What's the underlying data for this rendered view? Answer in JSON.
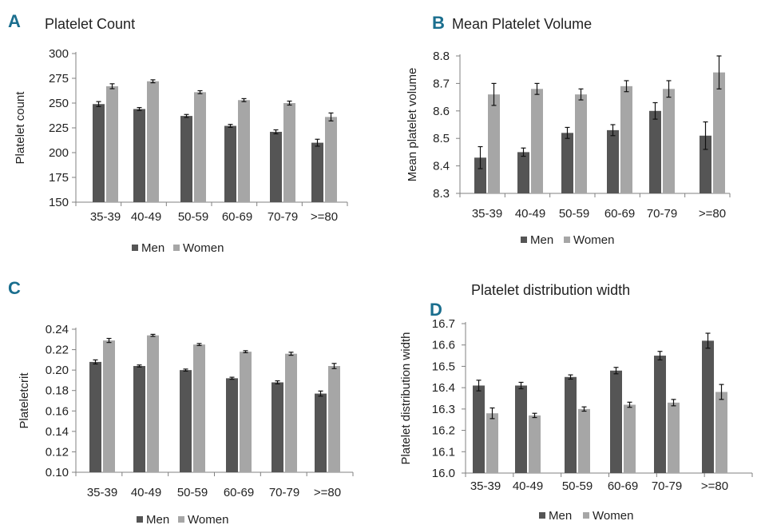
{
  "colors": {
    "men": "#555555",
    "women": "#a6a6a6",
    "accent": "#1a6e8e",
    "axis": "#808080",
    "error": "#111111"
  },
  "chart_data": [
    {
      "panel": "A",
      "type": "bar",
      "title": "Platelet Count",
      "xlabel": "",
      "ylabel": "Platelet count",
      "ylim": [
        150,
        300
      ],
      "yticks": [
        "150",
        "175",
        "200",
        "225",
        "250",
        "275",
        "300"
      ],
      "categories": [
        "35-39",
        "40-49",
        "50-59",
        "60-69",
        "70-79",
        ">=80"
      ],
      "series": [
        {
          "name": "Men",
          "values": [
            249,
            244,
            237,
            227,
            221,
            210
          ],
          "errors": [
            2.5,
            1.5,
            1.5,
            1.5,
            2,
            3.5
          ]
        },
        {
          "name": "Women",
          "values": [
            267,
            272,
            261,
            253,
            250,
            236
          ],
          "errors": [
            2.5,
            1.5,
            1.5,
            1.5,
            2,
            4
          ]
        }
      ],
      "legend": "bottom"
    },
    {
      "panel": "B",
      "type": "bar",
      "title": "Mean Platelet Volume",
      "xlabel": "",
      "ylabel": "Mean platelet volume",
      "ylim": [
        8.3,
        8.8
      ],
      "yticks": [
        "8.3",
        "8.4",
        "8.5",
        "8.6",
        "8.7",
        "8.8"
      ],
      "categories": [
        "35-39",
        "40-49",
        "50-59",
        "60-69",
        "70-79",
        ">=80"
      ],
      "series": [
        {
          "name": "Men",
          "values": [
            8.43,
            8.45,
            8.52,
            8.53,
            8.6,
            8.51
          ],
          "errors": [
            0.04,
            0.015,
            0.02,
            0.02,
            0.03,
            0.05
          ]
        },
        {
          "name": "Women",
          "values": [
            8.66,
            8.68,
            8.66,
            8.69,
            8.68,
            8.74
          ],
          "errors": [
            0.04,
            0.02,
            0.02,
            0.02,
            0.03,
            0.06
          ]
        }
      ],
      "legend": "bottom"
    },
    {
      "panel": "C",
      "type": "bar",
      "title": "",
      "xlabel": "",
      "ylabel": "Plateletcrit",
      "ylim": [
        0.1,
        0.24
      ],
      "yticks": [
        "0.10",
        "0.12",
        "0.14",
        "0.16",
        "0.18",
        "0.20",
        "0.22",
        "0.24"
      ],
      "categories": [
        "35-39",
        "40-49",
        "50-59",
        "60-69",
        "70-79",
        ">=80"
      ],
      "series": [
        {
          "name": "Men",
          "values": [
            0.208,
            0.204,
            0.2,
            0.192,
            0.188,
            0.177
          ],
          "errors": [
            0.002,
            0.001,
            0.001,
            0.001,
            0.0015,
            0.0025
          ]
        },
        {
          "name": "Women",
          "values": [
            0.229,
            0.234,
            0.225,
            0.218,
            0.216,
            0.204
          ],
          "errors": [
            0.002,
            0.001,
            0.001,
            0.001,
            0.0015,
            0.0025
          ]
        }
      ],
      "legend": "bottom"
    },
    {
      "panel": "D",
      "type": "bar",
      "title": "Platelet distribution width",
      "xlabel": "",
      "ylabel": "Platelet distribution width",
      "ylim": [
        16.0,
        16.7
      ],
      "yticks": [
        "16.0",
        "16.1",
        "16.2",
        "16.3",
        "16.4",
        "16.5",
        "16.6",
        "16.7"
      ],
      "categories": [
        "35-39",
        "40-49",
        "50-59",
        "60-69",
        "70-79",
        ">=80"
      ],
      "series": [
        {
          "name": "Men",
          "values": [
            16.41,
            16.41,
            16.45,
            16.48,
            16.55,
            16.62
          ],
          "errors": [
            0.025,
            0.015,
            0.01,
            0.015,
            0.02,
            0.035
          ]
        },
        {
          "name": "Women",
          "values": [
            16.28,
            16.27,
            16.3,
            16.32,
            16.33,
            16.38
          ],
          "errors": [
            0.025,
            0.01,
            0.01,
            0.012,
            0.015,
            0.035
          ]
        }
      ],
      "legend": "bottom"
    }
  ]
}
